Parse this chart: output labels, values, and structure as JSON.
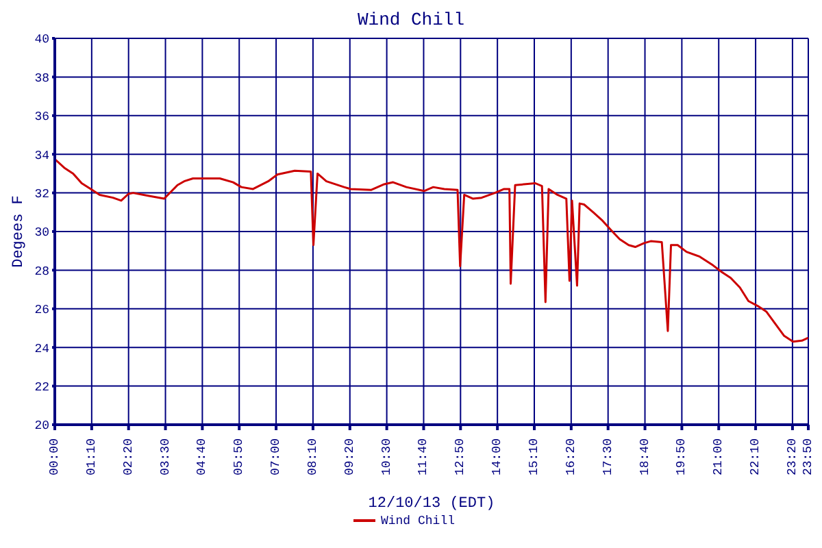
{
  "chart_data": {
    "type": "line",
    "title": "Wind Chill",
    "xlabel": "12/10/13 (EDT)",
    "ylabel": "Degees F",
    "xlim": [
      0,
      23.8333
    ],
    "ylim": [
      20,
      40
    ],
    "yticks": [
      20,
      22,
      24,
      26,
      28,
      30,
      32,
      34,
      36,
      38,
      40
    ],
    "xticks": [
      {
        "value": 0,
        "label": "00:00"
      },
      {
        "value": 1.1667,
        "label": "01:10"
      },
      {
        "value": 2.3333,
        "label": "02:20"
      },
      {
        "value": 3.5,
        "label": "03:30"
      },
      {
        "value": 4.6667,
        "label": "04:40"
      },
      {
        "value": 5.8333,
        "label": "05:50"
      },
      {
        "value": 7,
        "label": "07:00"
      },
      {
        "value": 8.1667,
        "label": "08:10"
      },
      {
        "value": 9.3333,
        "label": "09:20"
      },
      {
        "value": 10.5,
        "label": "10:30"
      },
      {
        "value": 11.6667,
        "label": "11:40"
      },
      {
        "value": 12.8333,
        "label": "12:50"
      },
      {
        "value": 14,
        "label": "14:00"
      },
      {
        "value": 15.1667,
        "label": "15:10"
      },
      {
        "value": 16.3333,
        "label": "16:20"
      },
      {
        "value": 17.5,
        "label": "17:30"
      },
      {
        "value": 18.6667,
        "label": "18:40"
      },
      {
        "value": 19.8333,
        "label": "19:50"
      },
      {
        "value": 21,
        "label": "21:00"
      },
      {
        "value": 22.1667,
        "label": "22:10"
      },
      {
        "value": 23.3333,
        "label": "23:20"
      },
      {
        "value": 23.8333,
        "label": "23:50"
      }
    ],
    "x": [
      0,
      0.3,
      0.58,
      0.85,
      1.14,
      1.42,
      1.84,
      2.1,
      2.33,
      2.48,
      2.95,
      3.46,
      3.88,
      4.09,
      4.37,
      5.22,
      5.64,
      5.9,
      6.27,
      6.75,
      7.04,
      7.59,
      8.1,
      8.18,
      8.31,
      8.59,
      9.15,
      9.36,
      10,
      10.42,
      10.7,
      11.12,
      11.68,
      11.97,
      12.32,
      12.74,
      12.82,
      12.95,
      13.23,
      13.5,
      13.92,
      14.21,
      14.38,
      14.42,
      14.56,
      15.2,
      15.41,
      15.52,
      15.62,
      15.9,
      16.18,
      16.28,
      16.36,
      16.52,
      16.6,
      16.74,
      17.03,
      17.3,
      17.58,
      17.87,
      18.15,
      18.36,
      18.64,
      18.85,
      19.2,
      19.39,
      19.49,
      19.7,
      19.98,
      20.4,
      20.82,
      21.1,
      21.38,
      21.67,
      21.94,
      22.23,
      22.51,
      22.8,
      23.07,
      23.35,
      23.63,
      23.83
    ],
    "series": [
      {
        "name": "Wind Chill",
        "color": "#cc0000",
        "values": [
          33.75,
          33.3,
          33,
          32.5,
          32.2,
          31.9,
          31.75,
          31.6,
          31.95,
          32,
          31.85,
          31.7,
          32.4,
          32.6,
          32.75,
          32.75,
          32.55,
          32.3,
          32.2,
          32.6,
          32.95,
          33.15,
          33.1,
          29.3,
          33,
          32.6,
          32.3,
          32.2,
          32.15,
          32.45,
          32.55,
          32.3,
          32.1,
          32.3,
          32.2,
          32.15,
          28.2,
          31.9,
          31.7,
          31.75,
          32,
          32.2,
          32.2,
          27.3,
          32.4,
          32.5,
          32.35,
          26.35,
          32.2,
          31.9,
          31.7,
          27.45,
          31.6,
          27.2,
          31.45,
          31.4,
          31,
          30.6,
          30.1,
          29.6,
          29.3,
          29.2,
          29.4,
          29.5,
          29.45,
          24.85,
          29.3,
          29.3,
          28.95,
          28.7,
          28.25,
          27.9,
          27.6,
          27.1,
          26.4,
          26.15,
          25.85,
          25.2,
          24.6,
          24.3,
          24.35,
          24.5
        ]
      }
    ],
    "grid": true,
    "legend": "bottom",
    "marker": "none",
    "line_style": "solid"
  }
}
